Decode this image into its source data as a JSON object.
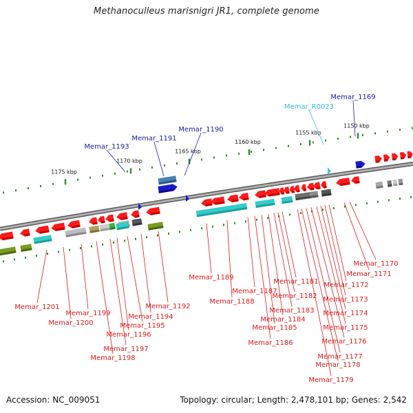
{
  "title": "Methanoculleus marisnigri JR1, complete genome",
  "accession": "Accession: NC_009051",
  "topology": "Topology: circular; Length: 2,478,101 bp; Genes: 2,542",
  "colors": {
    "cds": "#ff1a1a",
    "cds_dark": "#c40000",
    "trna": "#33cccc",
    "selected": "#1a1acc",
    "backbone": "#8c8c8c",
    "ruler_dot": "#2e8b2e"
  },
  "kbp_ticks": [
    "1150 kbp",
    "1155 kbp",
    "1160 kbp",
    "1165 kbp",
    "1170 kbp",
    "1175 kbp"
  ],
  "blue_labels": [
    "Memar_1169",
    "Memar_1190",
    "Memar_1191",
    "Memar_1193"
  ],
  "cyan_labels": [
    "Memar_R0023"
  ],
  "red_labels": [
    "Memar_1170",
    "Memar_1171",
    "Memar_1172",
    "Memar_1173",
    "Memar_1174",
    "Memar_1175",
    "Memar_1176",
    "Memar_1177",
    "Memar_1178",
    "Memar_1179",
    "Memar_1181",
    "Memar_1182",
    "Memar_1183",
    "Memar_1184",
    "Memar_1185",
    "Memar_1186",
    "Memar_1187",
    "Memar_1188",
    "Memar_1189",
    "Memar_1192",
    "Memar_1194",
    "Memar_1195",
    "Memar_1196",
    "Memar_1197",
    "Memar_1198",
    "Memar_1199",
    "Memar_1200",
    "Memar_1201"
  ]
}
